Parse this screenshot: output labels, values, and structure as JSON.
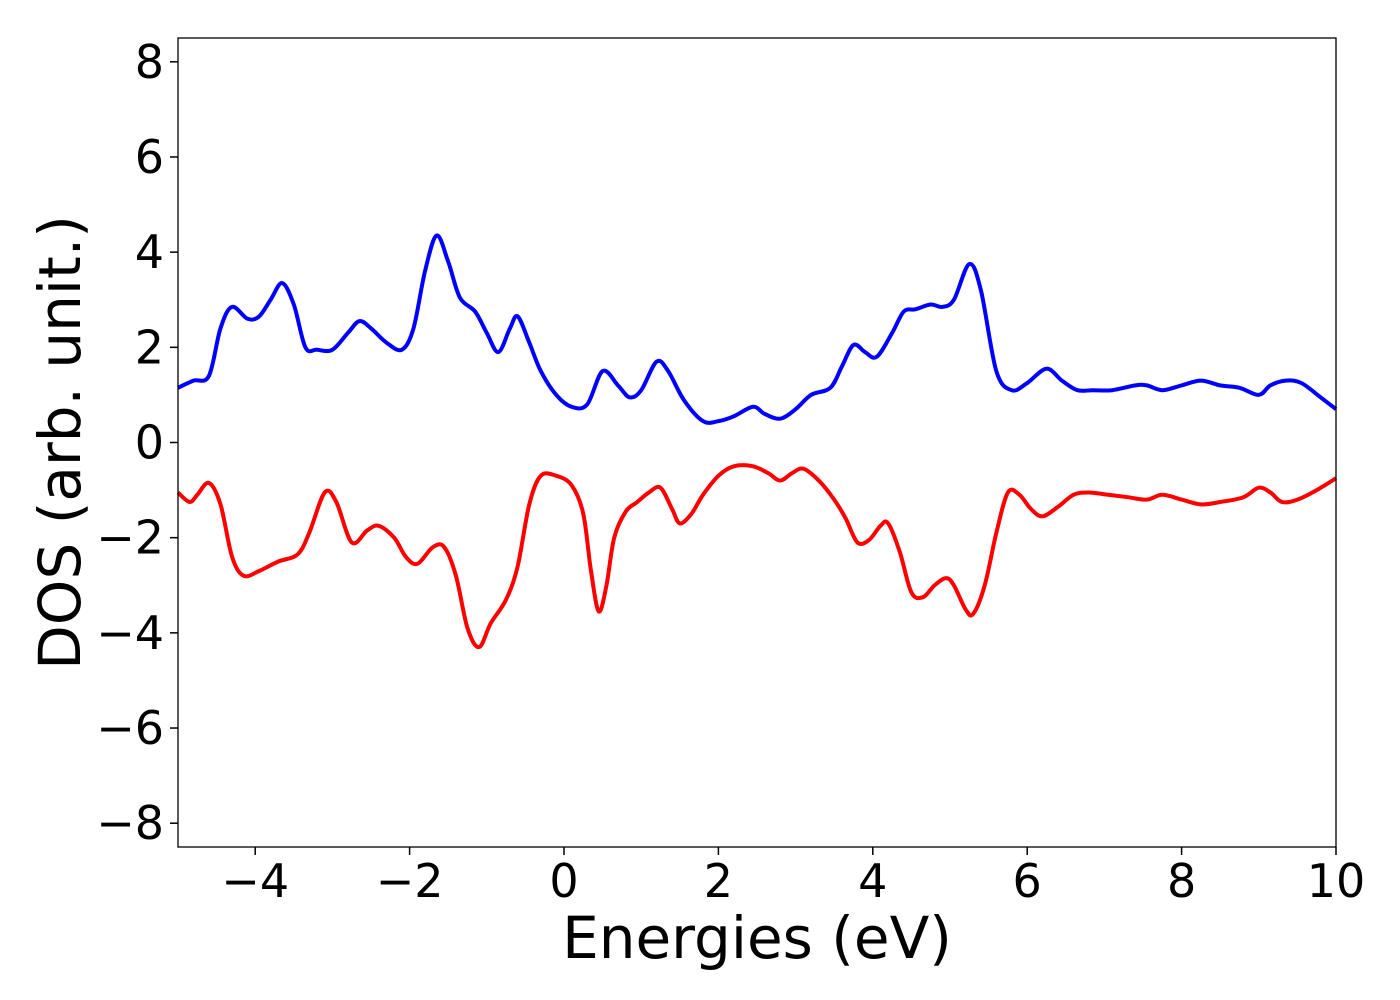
{
  "chart_data": {
    "type": "line",
    "title": "",
    "xlabel": "Energies (eV)",
    "ylabel": "DOS (arb. unit.)",
    "xlim": [
      -5,
      10
    ],
    "ylim": [
      -8.5,
      8.5
    ],
    "x_ticks": [
      -4,
      -2,
      0,
      2,
      4,
      6,
      8,
      10
    ],
    "y_ticks": [
      -8,
      -6,
      -4,
      -2,
      0,
      2,
      4,
      6,
      8
    ],
    "x_tick_labels": [
      "−4",
      "−2",
      "0",
      "2",
      "4",
      "6",
      "8",
      "10"
    ],
    "y_tick_labels": [
      "−8",
      "−6",
      "−4",
      "−2",
      "0",
      "2",
      "4",
      "6",
      "8"
    ],
    "grid": false,
    "legend": "none",
    "series": [
      {
        "color": "#0000ff",
        "points": [
          [
            -5.0,
            1.15
          ],
          [
            -4.8,
            1.3
          ],
          [
            -4.6,
            1.4
          ],
          [
            -4.45,
            2.4
          ],
          [
            -4.3,
            2.85
          ],
          [
            -4.1,
            2.6
          ],
          [
            -3.95,
            2.65
          ],
          [
            -3.8,
            3.0
          ],
          [
            -3.65,
            3.35
          ],
          [
            -3.5,
            2.9
          ],
          [
            -3.35,
            2.0
          ],
          [
            -3.2,
            1.95
          ],
          [
            -3.0,
            1.95
          ],
          [
            -2.8,
            2.3
          ],
          [
            -2.65,
            2.55
          ],
          [
            -2.5,
            2.4
          ],
          [
            -2.3,
            2.1
          ],
          [
            -2.1,
            1.95
          ],
          [
            -1.95,
            2.4
          ],
          [
            -1.8,
            3.6
          ],
          [
            -1.65,
            4.35
          ],
          [
            -1.5,
            3.8
          ],
          [
            -1.35,
            3.05
          ],
          [
            -1.15,
            2.75
          ],
          [
            -1.0,
            2.3
          ],
          [
            -0.85,
            1.9
          ],
          [
            -0.7,
            2.4
          ],
          [
            -0.6,
            2.65
          ],
          [
            -0.45,
            2.1
          ],
          [
            -0.3,
            1.5
          ],
          [
            -0.1,
            1.0
          ],
          [
            0.1,
            0.75
          ],
          [
            0.3,
            0.8
          ],
          [
            0.5,
            1.5
          ],
          [
            0.7,
            1.2
          ],
          [
            0.85,
            0.95
          ],
          [
            1.0,
            1.1
          ],
          [
            1.2,
            1.7
          ],
          [
            1.35,
            1.5
          ],
          [
            1.55,
            0.9
          ],
          [
            1.8,
            0.45
          ],
          [
            2.0,
            0.45
          ],
          [
            2.2,
            0.55
          ],
          [
            2.45,
            0.75
          ],
          [
            2.6,
            0.6
          ],
          [
            2.8,
            0.5
          ],
          [
            3.0,
            0.7
          ],
          [
            3.2,
            1.0
          ],
          [
            3.45,
            1.15
          ],
          [
            3.6,
            1.6
          ],
          [
            3.75,
            2.05
          ],
          [
            3.9,
            1.9
          ],
          [
            4.05,
            1.8
          ],
          [
            4.25,
            2.3
          ],
          [
            4.4,
            2.75
          ],
          [
            4.55,
            2.8
          ],
          [
            4.75,
            2.9
          ],
          [
            4.9,
            2.85
          ],
          [
            5.05,
            3.0
          ],
          [
            5.25,
            3.75
          ],
          [
            5.4,
            3.2
          ],
          [
            5.6,
            1.5
          ],
          [
            5.8,
            1.1
          ],
          [
            6.0,
            1.25
          ],
          [
            6.25,
            1.55
          ],
          [
            6.45,
            1.3
          ],
          [
            6.65,
            1.1
          ],
          [
            6.85,
            1.1
          ],
          [
            7.1,
            1.1
          ],
          [
            7.4,
            1.2
          ],
          [
            7.55,
            1.2
          ],
          [
            7.75,
            1.1
          ],
          [
            8.0,
            1.2
          ],
          [
            8.25,
            1.3
          ],
          [
            8.5,
            1.2
          ],
          [
            8.75,
            1.15
          ],
          [
            9.0,
            1.0
          ],
          [
            9.15,
            1.2
          ],
          [
            9.35,
            1.3
          ],
          [
            9.55,
            1.25
          ],
          [
            9.8,
            0.95
          ],
          [
            10.0,
            0.7
          ]
        ]
      },
      {
        "color": "#ff0000",
        "points": [
          [
            -5.0,
            -1.05
          ],
          [
            -4.85,
            -1.25
          ],
          [
            -4.75,
            -1.1
          ],
          [
            -4.6,
            -0.85
          ],
          [
            -4.45,
            -1.3
          ],
          [
            -4.3,
            -2.4
          ],
          [
            -4.15,
            -2.8
          ],
          [
            -3.95,
            -2.7
          ],
          [
            -3.7,
            -2.5
          ],
          [
            -3.45,
            -2.35
          ],
          [
            -3.3,
            -1.9
          ],
          [
            -3.1,
            -1.05
          ],
          [
            -2.95,
            -1.25
          ],
          [
            -2.75,
            -2.1
          ],
          [
            -2.55,
            -1.85
          ],
          [
            -2.4,
            -1.75
          ],
          [
            -2.2,
            -2.0
          ],
          [
            -2.05,
            -2.4
          ],
          [
            -1.9,
            -2.55
          ],
          [
            -1.7,
            -2.2
          ],
          [
            -1.55,
            -2.2
          ],
          [
            -1.4,
            -2.8
          ],
          [
            -1.25,
            -3.9
          ],
          [
            -1.1,
            -4.3
          ],
          [
            -0.95,
            -3.8
          ],
          [
            -0.75,
            -3.3
          ],
          [
            -0.6,
            -2.6
          ],
          [
            -0.45,
            -1.3
          ],
          [
            -0.3,
            -0.7
          ],
          [
            -0.1,
            -0.7
          ],
          [
            0.1,
            -0.9
          ],
          [
            0.25,
            -1.5
          ],
          [
            0.35,
            -2.7
          ],
          [
            0.45,
            -3.55
          ],
          [
            0.55,
            -3.0
          ],
          [
            0.65,
            -2.0
          ],
          [
            0.8,
            -1.45
          ],
          [
            0.95,
            -1.25
          ],
          [
            1.1,
            -1.05
          ],
          [
            1.25,
            -0.95
          ],
          [
            1.4,
            -1.4
          ],
          [
            1.5,
            -1.7
          ],
          [
            1.65,
            -1.5
          ],
          [
            1.8,
            -1.1
          ],
          [
            2.0,
            -0.7
          ],
          [
            2.2,
            -0.5
          ],
          [
            2.45,
            -0.5
          ],
          [
            2.65,
            -0.65
          ],
          [
            2.8,
            -0.8
          ],
          [
            2.95,
            -0.65
          ],
          [
            3.1,
            -0.55
          ],
          [
            3.3,
            -0.8
          ],
          [
            3.5,
            -1.2
          ],
          [
            3.65,
            -1.6
          ],
          [
            3.8,
            -2.1
          ],
          [
            3.95,
            -2.05
          ],
          [
            4.1,
            -1.75
          ],
          [
            4.2,
            -1.7
          ],
          [
            4.35,
            -2.3
          ],
          [
            4.5,
            -3.15
          ],
          [
            4.65,
            -3.25
          ],
          [
            4.8,
            -3.0
          ],
          [
            4.95,
            -2.85
          ],
          [
            5.05,
            -3.0
          ],
          [
            5.2,
            -3.5
          ],
          [
            5.3,
            -3.6
          ],
          [
            5.45,
            -3.0
          ],
          [
            5.6,
            -1.9
          ],
          [
            5.75,
            -1.05
          ],
          [
            5.9,
            -1.1
          ],
          [
            6.05,
            -1.4
          ],
          [
            6.2,
            -1.55
          ],
          [
            6.4,
            -1.35
          ],
          [
            6.6,
            -1.1
          ],
          [
            6.8,
            -1.05
          ],
          [
            7.05,
            -1.1
          ],
          [
            7.3,
            -1.15
          ],
          [
            7.55,
            -1.2
          ],
          [
            7.75,
            -1.1
          ],
          [
            8.0,
            -1.2
          ],
          [
            8.25,
            -1.3
          ],
          [
            8.5,
            -1.25
          ],
          [
            8.8,
            -1.15
          ],
          [
            9.0,
            -0.95
          ],
          [
            9.15,
            -1.05
          ],
          [
            9.3,
            -1.25
          ],
          [
            9.5,
            -1.2
          ],
          [
            9.75,
            -1.0
          ],
          [
            10.0,
            -0.75
          ]
        ]
      }
    ]
  }
}
